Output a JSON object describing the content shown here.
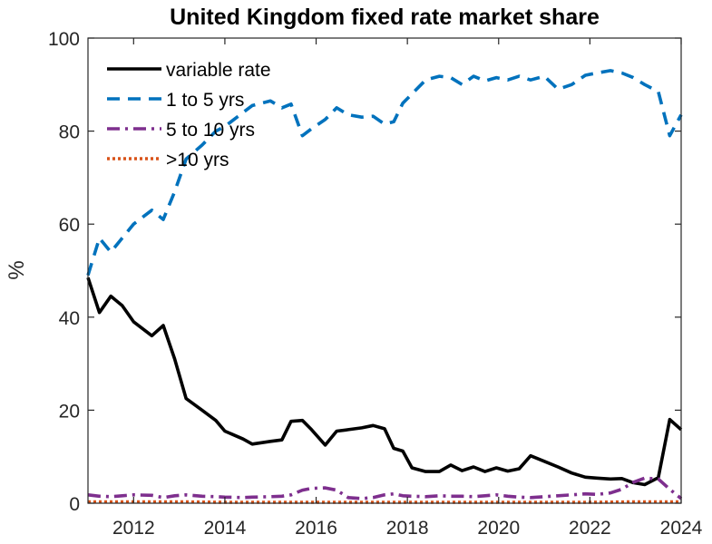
{
  "chart_data": {
    "type": "line",
    "title": "United Kingdom fixed rate market share",
    "xlabel": "",
    "ylabel": "%",
    "xlim": [
      2011,
      2024
    ],
    "ylim": [
      0,
      100
    ],
    "xticks": [
      2012,
      2014,
      2016,
      2018,
      2020,
      2022,
      2024
    ],
    "yticks": [
      0,
      20,
      40,
      60,
      80,
      100
    ],
    "legend_position": "top-left",
    "series": [
      {
        "name": "variable rate",
        "color": "#000000",
        "dash": "solid",
        "points": [
          [
            2011.0,
            48.5
          ],
          [
            2011.25,
            41.0
          ],
          [
            2011.5,
            44.5
          ],
          [
            2011.75,
            42.5
          ],
          [
            2012.0,
            39.0
          ],
          [
            2012.4,
            36.0
          ],
          [
            2012.65,
            38.2
          ],
          [
            2012.9,
            31.0
          ],
          [
            2013.15,
            22.5
          ],
          [
            2013.5,
            20.0
          ],
          [
            2013.8,
            17.8
          ],
          [
            2014.0,
            15.5
          ],
          [
            2014.4,
            13.8
          ],
          [
            2014.6,
            12.7
          ],
          [
            2015.0,
            13.3
          ],
          [
            2015.25,
            13.6
          ],
          [
            2015.45,
            17.6
          ],
          [
            2015.7,
            17.8
          ],
          [
            2015.9,
            15.8
          ],
          [
            2016.2,
            12.5
          ],
          [
            2016.45,
            15.5
          ],
          [
            2016.7,
            15.8
          ],
          [
            2017.0,
            16.2
          ],
          [
            2017.25,
            16.7
          ],
          [
            2017.5,
            16.0
          ],
          [
            2017.7,
            11.8
          ],
          [
            2017.9,
            11.2
          ],
          [
            2018.1,
            7.6
          ],
          [
            2018.4,
            6.8
          ],
          [
            2018.7,
            6.8
          ],
          [
            2018.95,
            8.2
          ],
          [
            2019.2,
            7.0
          ],
          [
            2019.45,
            7.8
          ],
          [
            2019.7,
            6.8
          ],
          [
            2019.95,
            7.6
          ],
          [
            2020.2,
            6.9
          ],
          [
            2020.45,
            7.4
          ],
          [
            2020.7,
            10.2
          ],
          [
            2021.0,
            9.0
          ],
          [
            2021.3,
            7.8
          ],
          [
            2021.6,
            6.5
          ],
          [
            2021.9,
            5.6
          ],
          [
            2022.15,
            5.4
          ],
          [
            2022.45,
            5.2
          ],
          [
            2022.7,
            5.3
          ],
          [
            2022.95,
            4.4
          ],
          [
            2023.2,
            4.0
          ],
          [
            2023.5,
            5.5
          ],
          [
            2023.75,
            18.0
          ],
          [
            2024.0,
            15.8
          ]
        ]
      },
      {
        "name": "1 to 5 yrs",
        "color": "#0072BD",
        "dash": "dashed",
        "points": [
          [
            2011.0,
            49.0
          ],
          [
            2011.25,
            57.0
          ],
          [
            2011.5,
            54.0
          ],
          [
            2011.75,
            57.0
          ],
          [
            2012.0,
            60.0
          ],
          [
            2012.4,
            63.0
          ],
          [
            2012.65,
            61.0
          ],
          [
            2012.9,
            67.0
          ],
          [
            2013.15,
            74.0
          ],
          [
            2013.5,
            77.0
          ],
          [
            2013.8,
            80.0
          ],
          [
            2014.0,
            81.0
          ],
          [
            2014.4,
            84.0
          ],
          [
            2014.6,
            85.5
          ],
          [
            2015.0,
            86.5
          ],
          [
            2015.25,
            85.0
          ],
          [
            2015.45,
            85.8
          ],
          [
            2015.7,
            79.0
          ],
          [
            2015.9,
            80.5
          ],
          [
            2016.2,
            82.5
          ],
          [
            2016.45,
            85.0
          ],
          [
            2016.7,
            83.5
          ],
          [
            2017.0,
            83.0
          ],
          [
            2017.25,
            83.2
          ],
          [
            2017.5,
            81.5
          ],
          [
            2017.7,
            82.0
          ],
          [
            2017.9,
            86.0
          ],
          [
            2018.1,
            88.0
          ],
          [
            2018.4,
            91.0
          ],
          [
            2018.7,
            91.8
          ],
          [
            2018.95,
            91.5
          ],
          [
            2019.2,
            90.0
          ],
          [
            2019.45,
            91.8
          ],
          [
            2019.7,
            90.8
          ],
          [
            2019.95,
            91.5
          ],
          [
            2020.2,
            91.0
          ],
          [
            2020.45,
            91.8
          ],
          [
            2020.7,
            91.0
          ],
          [
            2021.0,
            91.8
          ],
          [
            2021.3,
            89.0
          ],
          [
            2021.6,
            90.0
          ],
          [
            2021.9,
            92.0
          ],
          [
            2022.15,
            92.5
          ],
          [
            2022.45,
            93.0
          ],
          [
            2022.7,
            92.5
          ],
          [
            2022.95,
            91.5
          ],
          [
            2023.2,
            90.0
          ],
          [
            2023.5,
            88.5
          ],
          [
            2023.75,
            79.0
          ],
          [
            2024.0,
            83.5
          ]
        ]
      },
      {
        "name": "5 to 10 yrs",
        "color": "#7E2F8E",
        "dash": "dashdot",
        "points": [
          [
            2011.0,
            1.8
          ],
          [
            2011.25,
            1.5
          ],
          [
            2011.5,
            1.4
          ],
          [
            2011.75,
            1.6
          ],
          [
            2012.0,
            1.8
          ],
          [
            2012.4,
            1.7
          ],
          [
            2012.65,
            1.2
          ],
          [
            2012.9,
            1.6
          ],
          [
            2013.15,
            1.8
          ],
          [
            2013.5,
            1.5
          ],
          [
            2013.8,
            1.4
          ],
          [
            2014.0,
            1.3
          ],
          [
            2014.4,
            1.2
          ],
          [
            2014.6,
            1.3
          ],
          [
            2015.0,
            1.4
          ],
          [
            2015.25,
            1.5
          ],
          [
            2015.45,
            1.8
          ],
          [
            2015.7,
            2.8
          ],
          [
            2015.9,
            3.2
          ],
          [
            2016.2,
            3.3
          ],
          [
            2016.45,
            2.8
          ],
          [
            2016.7,
            1.2
          ],
          [
            2017.0,
            1.0
          ],
          [
            2017.25,
            1.2
          ],
          [
            2017.5,
            1.8
          ],
          [
            2017.7,
            2.0
          ],
          [
            2017.9,
            1.6
          ],
          [
            2018.1,
            1.5
          ],
          [
            2018.4,
            1.4
          ],
          [
            2018.7,
            1.6
          ],
          [
            2018.95,
            1.5
          ],
          [
            2019.2,
            1.5
          ],
          [
            2019.45,
            1.4
          ],
          [
            2019.7,
            1.6
          ],
          [
            2019.95,
            1.8
          ],
          [
            2020.2,
            1.5
          ],
          [
            2020.45,
            1.3
          ],
          [
            2020.7,
            1.2
          ],
          [
            2021.0,
            1.4
          ],
          [
            2021.3,
            1.6
          ],
          [
            2021.6,
            1.8
          ],
          [
            2021.9,
            2.0
          ],
          [
            2022.15,
            1.9
          ],
          [
            2022.45,
            2.2
          ],
          [
            2022.7,
            3.0
          ],
          [
            2022.95,
            4.5
          ],
          [
            2023.2,
            5.4
          ],
          [
            2023.5,
            5.2
          ],
          [
            2023.75,
            3.0
          ],
          [
            2024.0,
            1.0
          ]
        ]
      },
      {
        "name": ">10 yrs",
        "color": "#D95319",
        "dash": "dotted",
        "points": [
          [
            2011.0,
            0.3
          ],
          [
            2012.0,
            0.3
          ],
          [
            2013.0,
            0.3
          ],
          [
            2014.0,
            0.2
          ],
          [
            2015.0,
            0.2
          ],
          [
            2016.0,
            0.2
          ],
          [
            2017.0,
            0.2
          ],
          [
            2018.0,
            0.2
          ],
          [
            2019.0,
            0.2
          ],
          [
            2020.0,
            0.2
          ],
          [
            2021.0,
            0.2
          ],
          [
            2022.0,
            0.2
          ],
          [
            2023.0,
            0.3
          ],
          [
            2024.0,
            0.3
          ]
        ]
      }
    ]
  }
}
